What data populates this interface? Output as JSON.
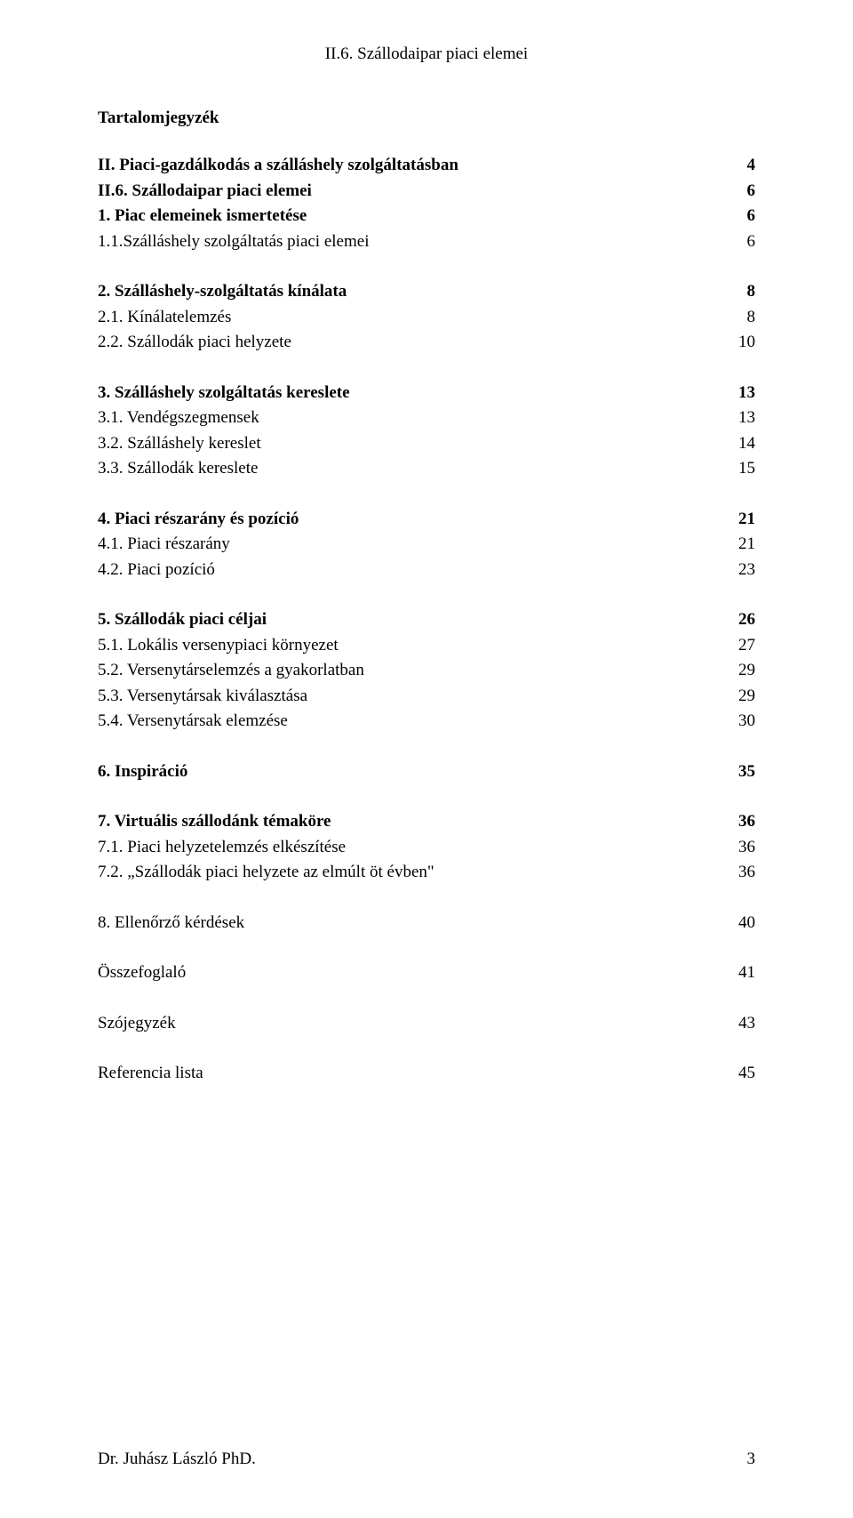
{
  "header": "II.6. Szállodaipar piaci elemei",
  "toc_title": "Tartalomjegyzék",
  "sections": [
    {
      "type": "entry",
      "label": "II. Piaci-gazdálkodás a szálláshely szolgáltatásban",
      "page": "4",
      "bold": true
    },
    {
      "type": "entry",
      "label": "II.6. Szállodaipar piaci elemei",
      "page": "6",
      "bold": true
    },
    {
      "type": "entry",
      "label": "1. Piac elemeinek ismertetése",
      "page": "6",
      "bold": true
    },
    {
      "type": "entry",
      "label": "1.1.Szálláshely szolgáltatás piaci elemei",
      "page": "6",
      "bold": false
    },
    {
      "type": "spacer"
    },
    {
      "type": "entry",
      "label": "2. Szálláshely-szolgáltatás kínálata",
      "page": "8",
      "bold": true
    },
    {
      "type": "entry",
      "label": "2.1. Kínálatelemzés",
      "page": "8",
      "bold": false
    },
    {
      "type": "entry",
      "label": "2.2. Szállodák piaci helyzete",
      "page": "10",
      "bold": false
    },
    {
      "type": "spacer"
    },
    {
      "type": "entry",
      "label": "3. Szálláshely szolgáltatás kereslete",
      "page": "13",
      "bold": true
    },
    {
      "type": "entry",
      "label": "3.1. Vendégszegmensek",
      "page": "13",
      "bold": false
    },
    {
      "type": "entry",
      "label": "3.2. Szálláshely kereslet",
      "page": "14",
      "bold": false
    },
    {
      "type": "entry",
      "label": "3.3. Szállodák kereslete",
      "page": "15",
      "bold": false
    },
    {
      "type": "spacer"
    },
    {
      "type": "entry",
      "label": "4. Piaci részarány és pozíció",
      "page": "21",
      "bold": true
    },
    {
      "type": "entry",
      "label": "4.1. Piaci részarány",
      "page": "21",
      "bold": false
    },
    {
      "type": "entry",
      "label": "4.2. Piaci pozíció",
      "page": "23",
      "bold": false
    },
    {
      "type": "spacer"
    },
    {
      "type": "entry",
      "label": "5. Szállodák piaci céljai",
      "page": "26",
      "bold": true
    },
    {
      "type": "entry",
      "label": "5.1. Lokális versenypiaci környezet",
      "page": "27",
      "bold": false
    },
    {
      "type": "entry",
      "label": "5.2. Versenytárselemzés a gyakorlatban",
      "page": "29",
      "bold": false
    },
    {
      "type": "entry",
      "label": "5.3. Versenytársak kiválasztása",
      "page": "29",
      "bold": false
    },
    {
      "type": "entry",
      "label": "5.4. Versenytársak elemzése",
      "page": "30",
      "bold": false
    },
    {
      "type": "spacer"
    },
    {
      "type": "entry",
      "label": "6. Inspiráció",
      "page": "35",
      "bold": true
    },
    {
      "type": "spacer"
    },
    {
      "type": "entry",
      "label": "7. Virtuális szállodánk témaköre",
      "page": "36",
      "bold": true
    },
    {
      "type": "entry",
      "label": "7.1. Piaci helyzetelemzés elkészítése",
      "page": "36",
      "bold": false
    },
    {
      "type": "entry",
      "label": "7.2. „Szállodák piaci helyzete az elmúlt öt évben\"",
      "page": "36",
      "bold": false
    },
    {
      "type": "spacer"
    },
    {
      "type": "entry",
      "label": "8. Ellenőrző kérdések",
      "page": "40",
      "bold": false
    },
    {
      "type": "spacer"
    },
    {
      "type": "entry",
      "label": "Összefoglaló",
      "page": "41",
      "bold": false
    },
    {
      "type": "spacer"
    },
    {
      "type": "entry",
      "label": "Szójegyzék",
      "page": "43",
      "bold": false
    },
    {
      "type": "spacer"
    },
    {
      "type": "entry",
      "label": "Referencia lista",
      "page": "45",
      "bold": false
    }
  ],
  "footer": {
    "author": "Dr. Juhász László PhD.",
    "page_number": "3"
  }
}
